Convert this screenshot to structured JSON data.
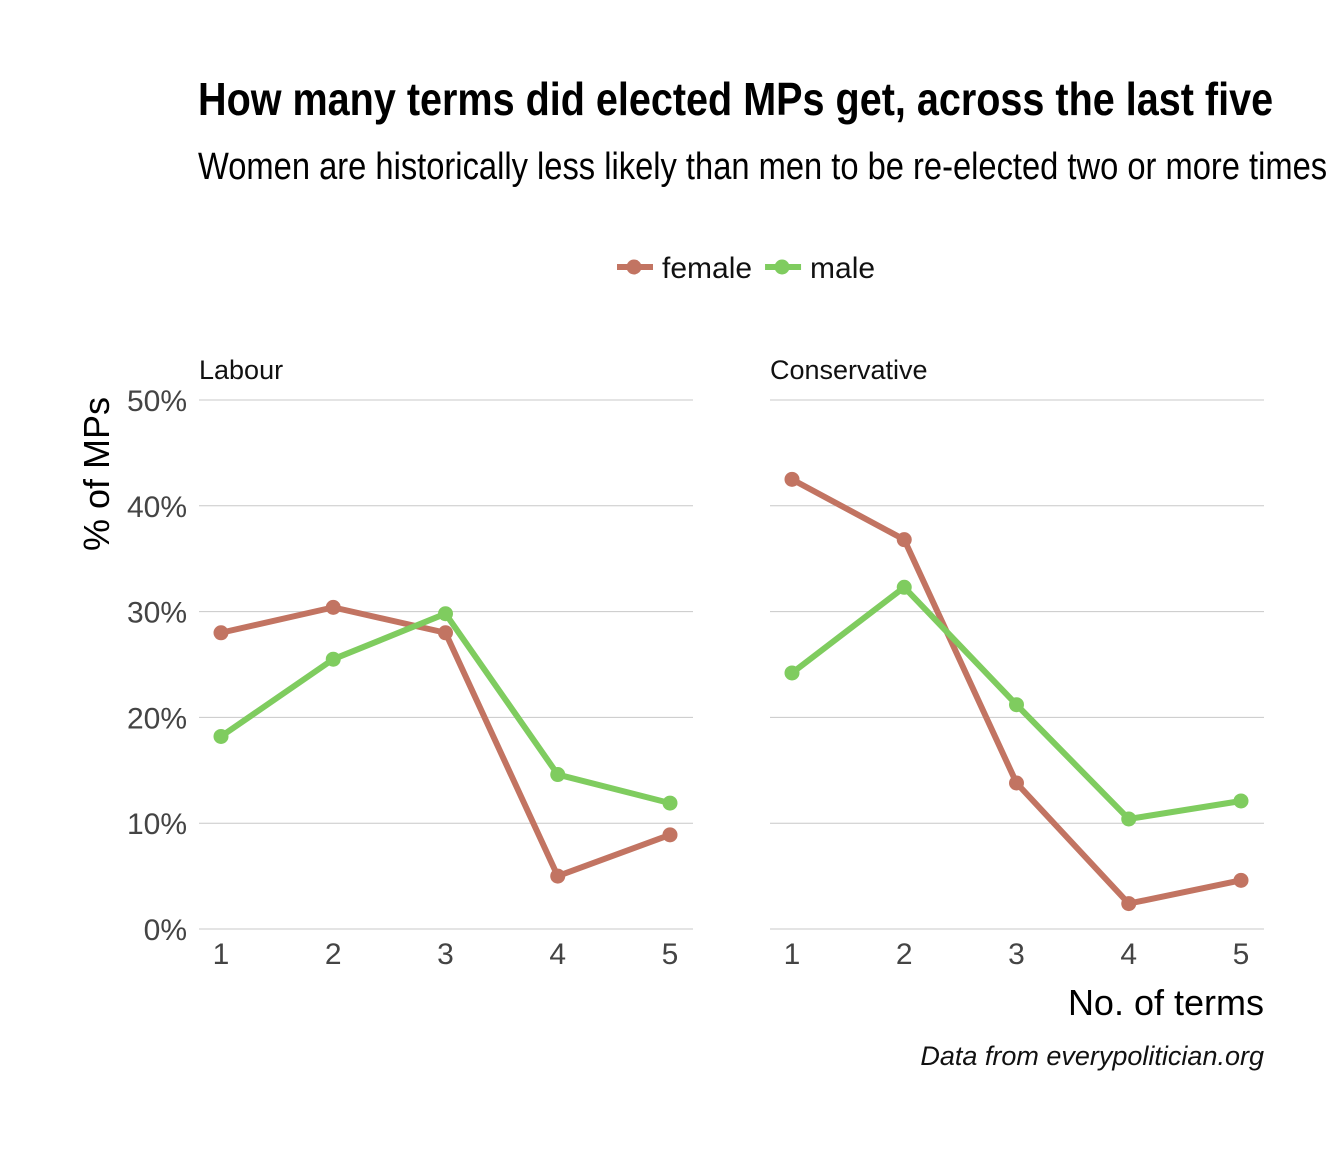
{
  "title": "How many terms did elected MPs get, across the last five",
  "subtitle": "Women are historically less likely than men to be re-elected two or more times",
  "caption": "Data from everypolitician.org",
  "legend": [
    {
      "key": "female",
      "label": "female",
      "color": "#c27462"
    },
    {
      "key": "male",
      "label": "male",
      "color": "#7fcc5f"
    }
  ],
  "chart_data": {
    "type": "line",
    "title": "How many terms did elected MPs get, across the last five",
    "xlabel": "No. of terms",
    "ylabel": "% of MPs",
    "x": [
      1,
      2,
      3,
      4,
      5
    ],
    "x_tick_labels": [
      "1",
      "2",
      "3",
      "4",
      "5"
    ],
    "ylim": [
      0,
      50
    ],
    "y_ticks": [
      0,
      10,
      20,
      30,
      40,
      50
    ],
    "y_tick_labels": [
      "0%",
      "10%",
      "20%",
      "30%",
      "40%",
      "50%"
    ],
    "grid": "horizontal",
    "legend_position": "top",
    "facets": [
      {
        "name": "Labour",
        "series": [
          {
            "name": "female",
            "values": [
              28.0,
              30.4,
              28.0,
              5.0,
              8.9
            ]
          },
          {
            "name": "male",
            "values": [
              18.2,
              25.5,
              29.8,
              14.6,
              11.9
            ]
          }
        ]
      },
      {
        "name": "Conservative",
        "series": [
          {
            "name": "female",
            "values": [
              42.5,
              36.8,
              13.8,
              2.4,
              4.6
            ]
          },
          {
            "name": "male",
            "values": [
              24.2,
              32.3,
              21.2,
              10.4,
              12.1
            ]
          }
        ]
      }
    ]
  }
}
